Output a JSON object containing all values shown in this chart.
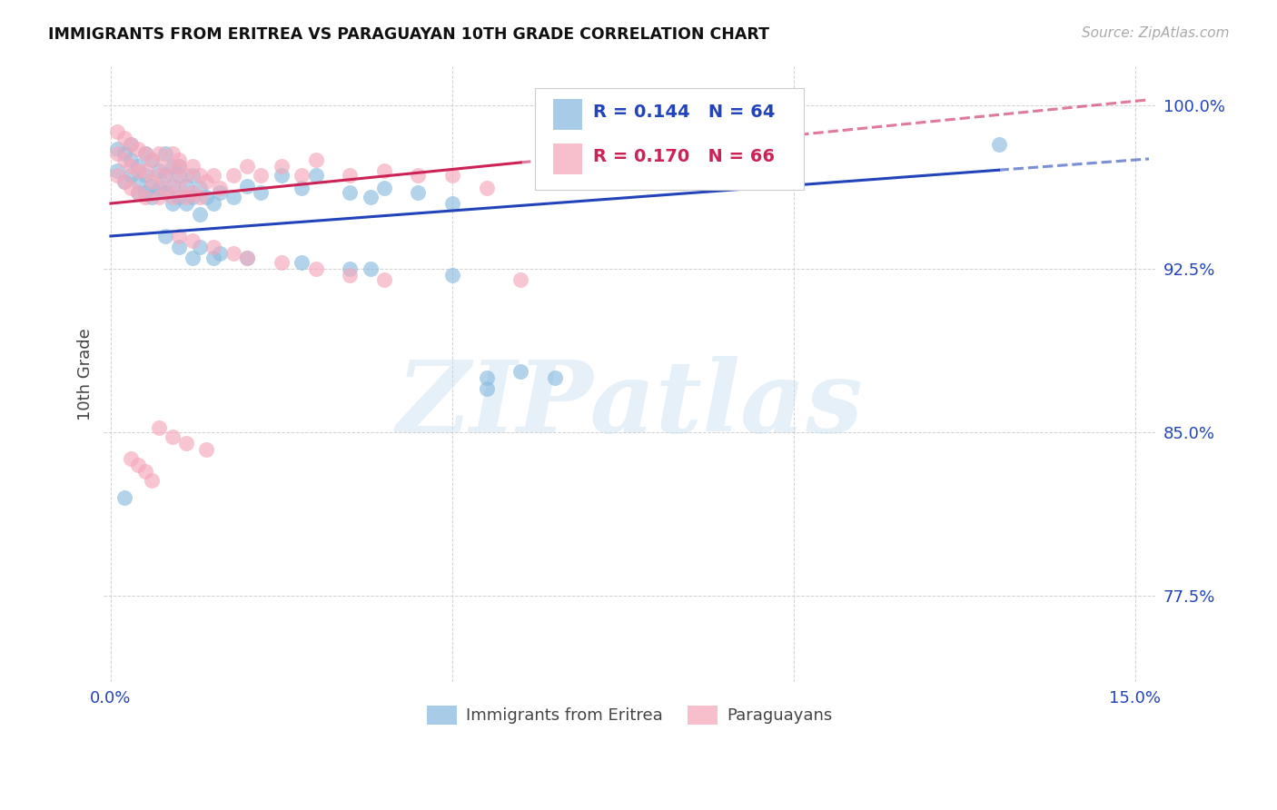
{
  "title": "IMMIGRANTS FROM ERITREA VS PARAGUAYAN 10TH GRADE CORRELATION CHART",
  "source": "Source: ZipAtlas.com",
  "ylabel": "10th Grade",
  "xlim": [
    -0.001,
    0.153
  ],
  "ylim": [
    0.735,
    1.018
  ],
  "xtick_vals": [
    0.0,
    0.05,
    0.1,
    0.15
  ],
  "xticklabels": [
    "0.0%",
    "",
    "",
    "15.0%"
  ],
  "ytick_vals": [
    0.775,
    0.85,
    0.925,
    1.0
  ],
  "yticklabels": [
    "77.5%",
    "85.0%",
    "92.5%",
    "100.0%"
  ],
  "blue_fill": "#8bbcdf",
  "pink_fill": "#f5a8bc",
  "blue_line": "#2244bb",
  "pink_line": "#cc2255",
  "tick_color": "#2244bb",
  "R_blue": 0.144,
  "N_blue": 64,
  "R_pink": 0.17,
  "N_pink": 66,
  "legend_label_blue": "Immigrants from Eritrea",
  "legend_label_pink": "Paraguayans",
  "watermark": "ZIPatlas",
  "blue_x": [
    0.001,
    0.001,
    0.002,
    0.002,
    0.003,
    0.003,
    0.003,
    0.004,
    0.004,
    0.004,
    0.005,
    0.005,
    0.005,
    0.006,
    0.006,
    0.006,
    0.007,
    0.007,
    0.008,
    0.008,
    0.008,
    0.009,
    0.009,
    0.009,
    0.01,
    0.01,
    0.01,
    0.011,
    0.011,
    0.012,
    0.012,
    0.013,
    0.013,
    0.014,
    0.015,
    0.016,
    0.018,
    0.02,
    0.022,
    0.025,
    0.028,
    0.03,
    0.035,
    0.038,
    0.04,
    0.045,
    0.05,
    0.055,
    0.06,
    0.065,
    0.012,
    0.015,
    0.02,
    0.028,
    0.035,
    0.038,
    0.05,
    0.055,
    0.008,
    0.01,
    0.013,
    0.016,
    0.13,
    0.002
  ],
  "blue_y": [
    0.98,
    0.97,
    0.978,
    0.965,
    0.982,
    0.975,
    0.968,
    0.972,
    0.96,
    0.965,
    0.978,
    0.968,
    0.96,
    0.975,
    0.963,
    0.958,
    0.97,
    0.962,
    0.968,
    0.978,
    0.96,
    0.972,
    0.963,
    0.955,
    0.968,
    0.958,
    0.972,
    0.963,
    0.955,
    0.968,
    0.958,
    0.962,
    0.95,
    0.958,
    0.955,
    0.96,
    0.958,
    0.963,
    0.96,
    0.968,
    0.962,
    0.968,
    0.96,
    0.958,
    0.962,
    0.96,
    0.955,
    0.875,
    0.878,
    0.875,
    0.93,
    0.93,
    0.93,
    0.928,
    0.925,
    0.925,
    0.922,
    0.87,
    0.94,
    0.935,
    0.935,
    0.932,
    0.982,
    0.82
  ],
  "pink_x": [
    0.001,
    0.001,
    0.001,
    0.002,
    0.002,
    0.002,
    0.003,
    0.003,
    0.003,
    0.004,
    0.004,
    0.004,
    0.005,
    0.005,
    0.005,
    0.006,
    0.006,
    0.007,
    0.007,
    0.007,
    0.008,
    0.008,
    0.009,
    0.009,
    0.009,
    0.01,
    0.01,
    0.01,
    0.011,
    0.011,
    0.012,
    0.012,
    0.013,
    0.013,
    0.014,
    0.015,
    0.016,
    0.018,
    0.02,
    0.022,
    0.025,
    0.028,
    0.03,
    0.035,
    0.04,
    0.045,
    0.05,
    0.055,
    0.06,
    0.01,
    0.012,
    0.015,
    0.018,
    0.02,
    0.025,
    0.03,
    0.035,
    0.04,
    0.007,
    0.009,
    0.011,
    0.014,
    0.003,
    0.004,
    0.005,
    0.006
  ],
  "pink_y": [
    0.988,
    0.978,
    0.968,
    0.985,
    0.975,
    0.965,
    0.982,
    0.972,
    0.962,
    0.98,
    0.97,
    0.96,
    0.978,
    0.97,
    0.958,
    0.975,
    0.965,
    0.978,
    0.968,
    0.958,
    0.972,
    0.962,
    0.978,
    0.968,
    0.958,
    0.972,
    0.962,
    0.975,
    0.968,
    0.958,
    0.972,
    0.96,
    0.968,
    0.958,
    0.965,
    0.968,
    0.962,
    0.968,
    0.972,
    0.968,
    0.972,
    0.968,
    0.975,
    0.968,
    0.97,
    0.968,
    0.968,
    0.962,
    0.92,
    0.94,
    0.938,
    0.935,
    0.932,
    0.93,
    0.928,
    0.925,
    0.922,
    0.92,
    0.852,
    0.848,
    0.845,
    0.842,
    0.838,
    0.835,
    0.832,
    0.828
  ]
}
